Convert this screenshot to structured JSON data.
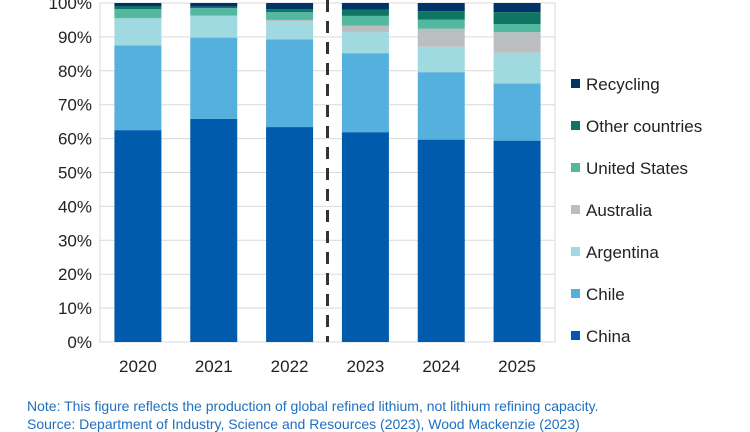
{
  "chart_data": {
    "type": "bar",
    "stacked": true,
    "categories": [
      "2020",
      "2021",
      "2022",
      "2023",
      "2024",
      "2025"
    ],
    "ylim": [
      0,
      100
    ],
    "yticks": [
      "0%",
      "10%",
      "20%",
      "30%",
      "40%",
      "50%",
      "60%",
      "70%",
      "80%",
      "90%",
      "100%"
    ],
    "grid": true,
    "legend_position": "right",
    "divider_between": [
      "2022",
      "2023"
    ],
    "series": [
      {
        "name": "China",
        "color": "#005BAC",
        "values": [
          62.5,
          65.8,
          63.4,
          61.9,
          59.7,
          59.4
        ]
      },
      {
        "name": "Chile",
        "color": "#56B0DD",
        "values": [
          25.0,
          24.0,
          25.9,
          23.3,
          19.9,
          16.9
        ]
      },
      {
        "name": "Argentina",
        "color": "#A0D9E0",
        "values": [
          8.0,
          6.5,
          5.4,
          6.2,
          7.5,
          9.0
        ]
      },
      {
        "name": "Australia",
        "color": "#BBBEC1",
        "values": [
          0,
          0,
          0.3,
          1.9,
          5.3,
          6.1
        ]
      },
      {
        "name": "United States",
        "color": "#52B8A0",
        "values": [
          2.7,
          2.2,
          2.3,
          2.9,
          2.7,
          2.4
        ]
      },
      {
        "name": "Other countries",
        "color": "#0E7563",
        "values": [
          0.8,
          0.4,
          0.9,
          1.8,
          2.5,
          3.5
        ]
      },
      {
        "name": "Recycling",
        "color": "#003366",
        "values": [
          1.0,
          1.1,
          1.8,
          2.0,
          2.4,
          2.7
        ]
      }
    ]
  },
  "notes": {
    "note": "Note: This figure reflects the production of global refined lithium, not lithium refining capacity.",
    "source": "Source: Department of Industry, Science and Resources (2023), Wood Mackenzie (2023)"
  }
}
